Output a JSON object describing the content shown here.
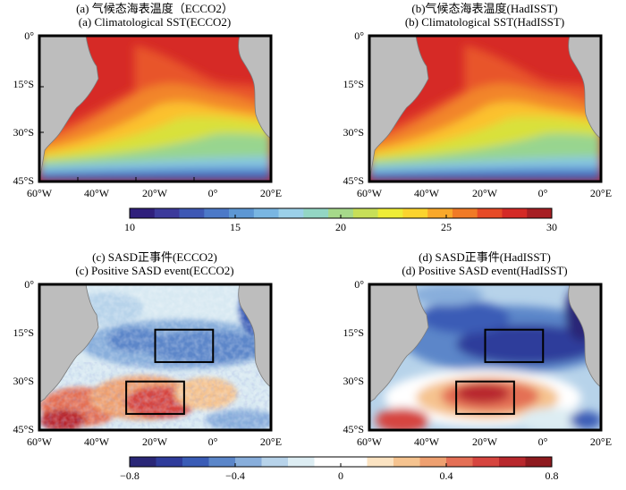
{
  "chart_data": [
    {
      "type": "heatmap",
      "id": "a",
      "title_cn": "(a) 气候态海表温度（ECCO2）",
      "title_en": "(a)  Climatological SST(ECCO2)",
      "x_ticks": [
        "60°W",
        "40°W",
        "20°W",
        "0°",
        "20°E"
      ],
      "y_ticks": [
        "0°",
        "15°S",
        "30°S",
        "45°S"
      ],
      "xlim": [
        -60,
        20
      ],
      "ylim": [
        -45,
        0
      ],
      "boxes": []
    },
    {
      "type": "heatmap",
      "id": "b",
      "title_cn": "(b)气候态海表温度(HadISST)",
      "title_en": "(b) Climatological SST(HadISST)",
      "x_ticks": [
        "60°W",
        "40°W",
        "20°W",
        "0°",
        "20°E"
      ],
      "y_ticks": [
        "0°",
        "15°S",
        "30°S",
        "45°S"
      ],
      "xlim": [
        -60,
        20
      ],
      "ylim": [
        -45,
        0
      ],
      "boxes": []
    },
    {
      "type": "heatmap",
      "id": "c",
      "title_cn": "(c) SASD正事件(ECCO2)",
      "title_en": "(c)  Positive SASD event(ECCO2)",
      "x_ticks": [
        "60°W",
        "40°W",
        "20°W",
        "0°",
        "20°E"
      ],
      "y_ticks": [
        "0°",
        "15°S",
        "30°S",
        "45°S"
      ],
      "xlim": [
        -60,
        20
      ],
      "ylim": [
        -45,
        0
      ],
      "boxes": [
        {
          "lon": [
            -20,
            0
          ],
          "lat": [
            -24,
            -14
          ]
        },
        {
          "lon": [
            -30,
            -10
          ],
          "lat": [
            -40,
            -30
          ]
        }
      ]
    },
    {
      "type": "heatmap",
      "id": "d",
      "title_cn": "(d) SASD正事件(HadISST)",
      "title_en": "(d) Positive SASD event(HadISST)",
      "x_ticks": [
        "60°W",
        "40°W",
        "20°W",
        "0°",
        "20°E"
      ],
      "y_ticks": [
        "0°",
        "15°S",
        "30°S",
        "45°S"
      ],
      "xlim": [
        -60,
        20
      ],
      "ylim": [
        -45,
        0
      ],
      "boxes": [
        {
          "lon": [
            -20,
            0
          ],
          "lat": [
            -24,
            -14
          ]
        },
        {
          "lon": [
            -30,
            -10
          ],
          "lat": [
            -40,
            -30
          ]
        }
      ]
    }
  ],
  "colorbars": [
    {
      "id": "sst",
      "range": [
        10,
        30
      ],
      "tick_labels": [
        "10",
        "15",
        "20",
        "25",
        "30"
      ],
      "tick_values": [
        10,
        15,
        20,
        25,
        30
      ],
      "colors": [
        "#2f1f7c",
        "#3c3a9b",
        "#3e58b4",
        "#4c79c8",
        "#5d97d4",
        "#79b6e2",
        "#9bd0e8",
        "#93d6c4",
        "#a6d98a",
        "#c7df58",
        "#eeec36",
        "#fbd42e",
        "#f9a82a",
        "#f07a26",
        "#e64a26",
        "#d42a26",
        "#a71f24"
      ]
    },
    {
      "id": "anom",
      "range": [
        -0.8,
        0.8
      ],
      "tick_labels": [
        "−0.8",
        "−0.4",
        "0",
        "0.4",
        "0.8"
      ],
      "tick_values": [
        -0.8,
        -0.4,
        0,
        0.4,
        0.8
      ],
      "colors": [
        "#2a2777",
        "#2f3c9b",
        "#3a5cb6",
        "#5b86c9",
        "#88aedb",
        "#b7d3ea",
        "#ddedf3",
        "#ffffff",
        "#ffffff",
        "#fbe3c2",
        "#f5c38f",
        "#eea070",
        "#e46f55",
        "#d6453f",
        "#b8282d",
        "#8e1a1f"
      ]
    }
  ],
  "colors": {
    "land": "#bdbdbd",
    "frame": "#000000",
    "box": "#000000"
  }
}
